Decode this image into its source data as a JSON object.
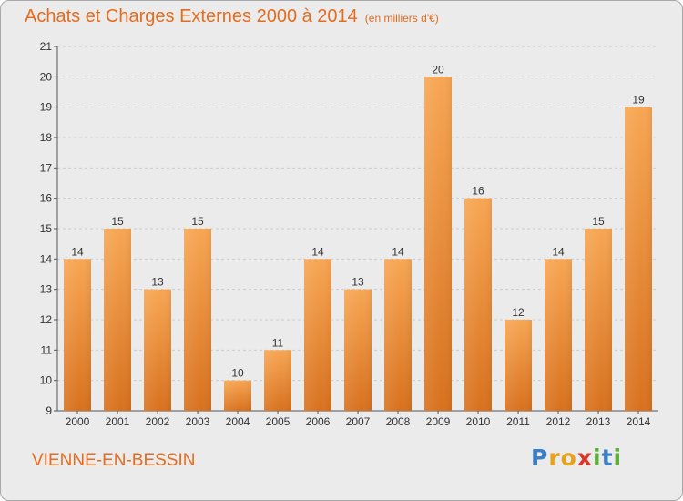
{
  "header": {
    "title": "Achats et Charges Externes 2000 à 2014",
    "unit": "(en milliers d'€)"
  },
  "footer": {
    "city": "VIENNE-EN-BESSIN",
    "logo": [
      "P",
      "r",
      "o",
      "x",
      "i",
      "t",
      "i"
    ]
  },
  "colors": {
    "accent": "#e36c1f",
    "bar_light": "#f7a653",
    "bar_dark": "#d8711e",
    "plot_bg": "#ebebeb",
    "grid": "#cccccc"
  },
  "chart_data": {
    "type": "bar",
    "categories": [
      "2000",
      "2001",
      "2002",
      "2003",
      "2004",
      "2005",
      "2006",
      "2007",
      "2008",
      "2009",
      "2010",
      "2011",
      "2012",
      "2013",
      "2014"
    ],
    "values": [
      14,
      15,
      13,
      15,
      10,
      11,
      14,
      13,
      14,
      20,
      16,
      12,
      14,
      15,
      19
    ],
    "ylim": [
      9,
      21
    ],
    "yticks": [
      9,
      10,
      11,
      12,
      13,
      14,
      15,
      16,
      17,
      18,
      19,
      20,
      21
    ],
    "grid": "horizontal-dashed",
    "legend": "none",
    "data_labels": true
  }
}
